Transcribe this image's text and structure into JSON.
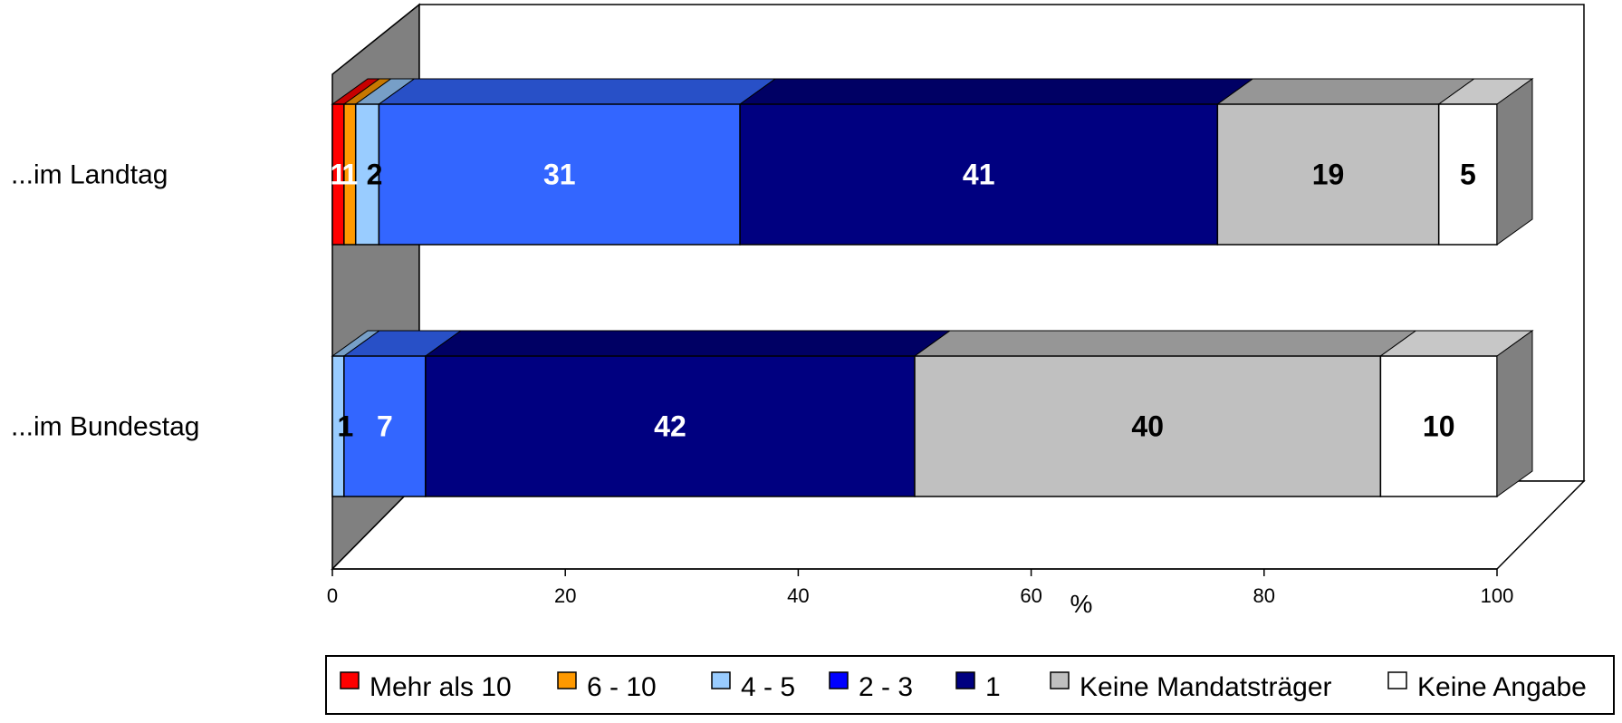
{
  "chart_data": {
    "type": "bar",
    "stacked": true,
    "orientation": "horizontal",
    "three_d": true,
    "categories": [
      "...im Landtag",
      "...im Bundestag"
    ],
    "series": [
      {
        "name": "Mehr als 10",
        "values": [
          1,
          0
        ],
        "color": "#FF0000",
        "label_color": "#ffffff"
      },
      {
        "name": "6 - 10",
        "values": [
          1,
          0
        ],
        "color": "#FF9900",
        "label_color": "#ffffff"
      },
      {
        "name": "4 - 5",
        "values": [
          2,
          1
        ],
        "color": "#99CCFF",
        "label_color": "#000000"
      },
      {
        "name": "2 - 3",
        "values": [
          31,
          7
        ],
        "color": "#3366FF",
        "label_color": "#ffffff"
      },
      {
        "name": "1",
        "values": [
          41,
          42
        ],
        "color": "#000080",
        "label_color": "#ffffff"
      },
      {
        "name": "Keine Mandatsträger",
        "values": [
          19,
          40
        ],
        "color": "#C0C0C0",
        "label_color": "#000000"
      },
      {
        "name": "Keine Angabe",
        "values": [
          5,
          10
        ],
        "color": "#FFFFFF",
        "label_color": "#000000"
      }
    ],
    "data_labels": [
      [
        "1",
        "1",
        "2",
        "31",
        "41",
        "19",
        "5"
      ],
      [
        "",
        "",
        "1",
        "7",
        "42",
        "40",
        "10"
      ]
    ],
    "xaxis": {
      "ticks": [
        0,
        20,
        40,
        60,
        80,
        100
      ],
      "tick_labels": [
        "0",
        "20",
        "40",
        "60",
        "80",
        "100"
      ],
      "unit_label": "%"
    },
    "xlim": [
      0,
      100
    ],
    "grid": false,
    "legend": {
      "position": "bottom",
      "legend_colors": [
        "#FF0000",
        "#FF9900",
        "#99CCFF",
        "#0000FF",
        "#000080",
        "#C0C0C0",
        "#FFFFFF"
      ]
    },
    "colors": {
      "wall": "#808080",
      "edge": "#000000",
      "background": "#ffffff"
    }
  }
}
